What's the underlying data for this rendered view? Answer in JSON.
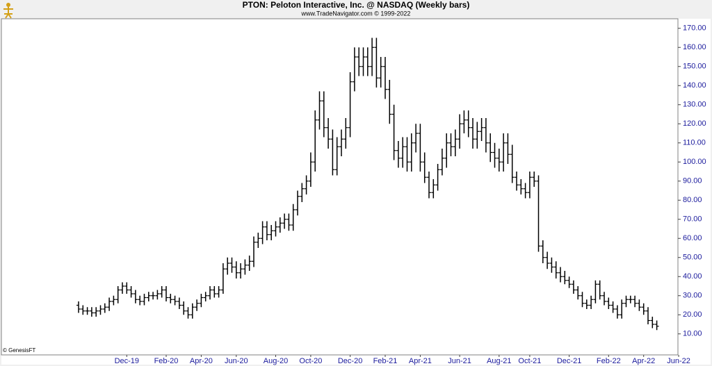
{
  "chart_data": {
    "type": "ohlc",
    "title": "PTON:  Peloton Interactive, Inc. @ NASDAQ  (Weekly bars)",
    "subtitle": "www.TradeNavigator.com © 1999-2022",
    "footer": "© GenesisFT",
    "color": "#000000",
    "categories": [
      null,
      null,
      null,
      null,
      null,
      null,
      null,
      null,
      null,
      null,
      null,
      "Dec-19",
      null,
      null,
      null,
      null,
      null,
      null,
      null,
      null,
      "Feb-20",
      null,
      null,
      null,
      null,
      null,
      null,
      null,
      "Apr-20",
      null,
      null,
      null,
      null,
      null,
      null,
      null,
      "Jun-20",
      null,
      null,
      null,
      null,
      null,
      null,
      null,
      null,
      "Aug-20",
      null,
      null,
      null,
      null,
      null,
      null,
      null,
      "Oct-20",
      null,
      null,
      null,
      null,
      null,
      null,
      null,
      null,
      "Dec-20",
      null,
      null,
      null,
      null,
      null,
      null,
      null,
      "Feb-21",
      null,
      null,
      null,
      null,
      null,
      null,
      null,
      "Apr-21",
      null,
      null,
      null,
      null,
      null,
      null,
      null,
      null,
      "Jun-21",
      null,
      null,
      null,
      null,
      null,
      null,
      null,
      null,
      "Aug-21",
      null,
      null,
      null,
      null,
      null,
      null,
      "Oct-21",
      null,
      null,
      null,
      null,
      null,
      null,
      null,
      null,
      "Dec-21",
      null,
      null,
      null,
      null,
      null,
      null,
      null,
      null,
      "Feb-22",
      null,
      null,
      null,
      null,
      null,
      null,
      null,
      "Apr-22",
      null,
      null,
      null,
      null,
      null,
      null,
      null,
      "Jun-22"
    ],
    "open": [
      25,
      23,
      22,
      22,
      21,
      22,
      23,
      24,
      27,
      28,
      33,
      35,
      33,
      31,
      28,
      27,
      29,
      30,
      30,
      31,
      33,
      29,
      28,
      27,
      25,
      22,
      20,
      24,
      26,
      29,
      30,
      33,
      31,
      33,
      44,
      47,
      45,
      42,
      44,
      46,
      48,
      58,
      60,
      66,
      62,
      64,
      66,
      68,
      70,
      67,
      75,
      82,
      86,
      90,
      100,
      122,
      132,
      118,
      112,
      96,
      108,
      112,
      118,
      142,
      155,
      150,
      155,
      150,
      160,
      144,
      150,
      138,
      125,
      106,
      102,
      108,
      100,
      110,
      115,
      100,
      92,
      84,
      88,
      96,
      102,
      110,
      108,
      112,
      120,
      122,
      118,
      112,
      116,
      118,
      110,
      105,
      102,
      100,
      110,
      104,
      92,
      88,
      86,
      84,
      92,
      90,
      56,
      50,
      47,
      45,
      42,
      40,
      38,
      36,
      33,
      30,
      26,
      25,
      28,
      36,
      30,
      27,
      25,
      23,
      20,
      26,
      28,
      28,
      26,
      24,
      22,
      17,
      15,
      null,
      null,
      null,
      null,
      null
    ],
    "high": [
      27,
      25,
      24,
      24,
      24,
      25,
      26,
      29,
      30,
      35,
      37,
      37,
      35,
      33,
      30,
      31,
      32,
      32,
      33,
      35,
      35,
      31,
      30,
      29,
      27,
      24,
      26,
      28,
      31,
      32,
      35,
      35,
      35,
      47,
      50,
      50,
      48,
      47,
      49,
      51,
      61,
      63,
      69,
      69,
      67,
      69,
      71,
      73,
      73,
      78,
      85,
      89,
      93,
      105,
      127,
      137,
      137,
      123,
      117,
      113,
      117,
      123,
      147,
      160,
      160,
      160,
      160,
      165,
      165,
      155,
      155,
      143,
      130,
      111,
      113,
      113,
      115,
      120,
      120,
      105,
      95,
      91,
      99,
      107,
      115,
      115,
      117,
      125,
      127,
      127,
      123,
      121,
      123,
      123,
      115,
      110,
      107,
      115,
      115,
      109,
      95,
      91,
      89,
      95,
      95,
      93,
      59,
      53,
      50,
      48,
      45,
      43,
      40,
      38,
      35,
      32,
      28,
      30,
      38,
      38,
      32,
      29,
      27,
      25,
      28,
      30,
      30,
      30,
      28,
      26,
      24,
      19,
      17,
      null,
      null,
      null,
      null,
      null
    ],
    "low": [
      21,
      20,
      20,
      19,
      19,
      20,
      21,
      22,
      25,
      26,
      31,
      31,
      29,
      26,
      25,
      25,
      27,
      28,
      28,
      29,
      27,
      26,
      25,
      23,
      20,
      18,
      18,
      22,
      24,
      27,
      28,
      29,
      29,
      31,
      41,
      42,
      39,
      39,
      41,
      43,
      45,
      55,
      57,
      59,
      59,
      61,
      63,
      65,
      64,
      64,
      72,
      79,
      83,
      87,
      95,
      117,
      113,
      107,
      93,
      93,
      103,
      107,
      113,
      137,
      145,
      145,
      145,
      145,
      139,
      139,
      133,
      120,
      101,
      97,
      97,
      95,
      95,
      105,
      95,
      89,
      81,
      81,
      85,
      93,
      97,
      103,
      103,
      107,
      115,
      113,
      107,
      107,
      111,
      105,
      100,
      97,
      95,
      95,
      99,
      89,
      85,
      83,
      81,
      81,
      87,
      53,
      47,
      44,
      42,
      39,
      37,
      36,
      34,
      31,
      28,
      24,
      23,
      23,
      26,
      28,
      25,
      23,
      21,
      18,
      18,
      24,
      26,
      24,
      22,
      20,
      15,
      13,
      12,
      null,
      null,
      null,
      null,
      null
    ],
    "close": [
      23,
      22,
      22,
      21,
      22,
      23,
      24,
      27,
      28,
      33,
      35,
      33,
      31,
      28,
      27,
      29,
      30,
      30,
      31,
      33,
      29,
      28,
      27,
      25,
      22,
      20,
      24,
      26,
      29,
      30,
      33,
      31,
      33,
      44,
      47,
      45,
      42,
      44,
      46,
      48,
      58,
      60,
      66,
      62,
      64,
      66,
      68,
      70,
      67,
      75,
      82,
      86,
      90,
      100,
      122,
      132,
      118,
      112,
      96,
      108,
      112,
      118,
      142,
      155,
      150,
      155,
      150,
      160,
      144,
      150,
      138,
      125,
      106,
      102,
      108,
      100,
      110,
      115,
      100,
      92,
      84,
      88,
      96,
      102,
      110,
      108,
      112,
      120,
      122,
      118,
      112,
      116,
      118,
      110,
      105,
      102,
      100,
      110,
      104,
      92,
      88,
      86,
      84,
      92,
      90,
      56,
      50,
      47,
      45,
      42,
      40,
      38,
      36,
      33,
      30,
      26,
      25,
      28,
      36,
      30,
      27,
      25,
      23,
      20,
      26,
      28,
      28,
      26,
      24,
      22,
      17,
      15,
      14,
      null,
      null,
      null,
      null,
      null
    ],
    "ylim": [
      -1,
      175
    ],
    "yticks": [
      {
        "value": 10,
        "label": "10.00"
      },
      {
        "value": 20,
        "label": "20.00"
      },
      {
        "value": 30,
        "label": "30.00"
      },
      {
        "value": 40,
        "label": "40.00"
      },
      {
        "value": 50,
        "label": "50.00"
      },
      {
        "value": 60,
        "label": "60.00"
      },
      {
        "value": 70,
        "label": "70.00"
      },
      {
        "value": 80,
        "label": "80.00"
      },
      {
        "value": 90,
        "label": "90.00"
      },
      {
        "value": 100,
        "label": "100.00"
      },
      {
        "value": 110,
        "label": "110.00"
      },
      {
        "value": 120,
        "label": "120.00"
      },
      {
        "value": 130,
        "label": "130.00"
      },
      {
        "value": 140,
        "label": "140.00"
      },
      {
        "value": 150,
        "label": "150.00"
      },
      {
        "value": 160,
        "label": "160.00"
      },
      {
        "value": 170,
        "label": "170.00"
      }
    ],
    "grid": false
  }
}
